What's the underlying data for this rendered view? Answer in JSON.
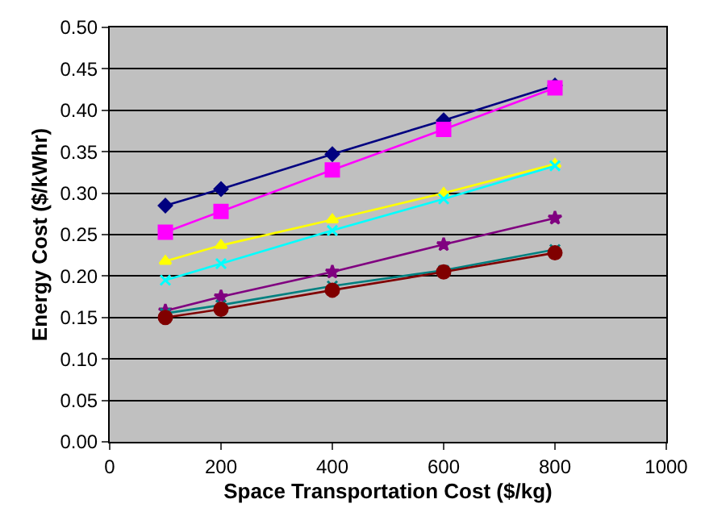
{
  "chart_data": {
    "type": "line",
    "xlabel": "Space Transportation Cost ($/kg)",
    "ylabel": "Energy Cost ($/kWhr)",
    "x": [
      100,
      200,
      400,
      600,
      800
    ],
    "series": [
      {
        "color": "#000080",
        "marker": "diamond",
        "values": [
          0.285,
          0.305,
          0.347,
          0.388,
          0.43
        ]
      },
      {
        "color": "#ff00ff",
        "marker": "square",
        "values": [
          0.253,
          0.278,
          0.328,
          0.377,
          0.427
        ]
      },
      {
        "color": "#ffff00",
        "marker": "triangle",
        "values": [
          0.218,
          0.237,
          0.268,
          0.3,
          0.335
        ]
      },
      {
        "color": "#00ffff",
        "marker": "cross",
        "values": [
          0.195,
          0.215,
          0.255,
          0.293,
          0.333
        ]
      },
      {
        "color": "#800080",
        "marker": "star",
        "values": [
          0.158,
          0.175,
          0.205,
          0.238,
          0.27
        ]
      },
      {
        "color": "#008080",
        "marker": "cross",
        "values": [
          0.155,
          0.165,
          0.188,
          0.207,
          0.232
        ]
      },
      {
        "color": "#800000",
        "marker": "circle",
        "values": [
          0.15,
          0.16,
          0.183,
          0.205,
          0.228
        ]
      }
    ],
    "xlim": [
      0,
      1000
    ],
    "xticks": [
      0,
      200,
      400,
      600,
      800,
      1000
    ],
    "ylim": [
      0,
      0.5
    ],
    "yticks": [
      {
        "value": 0,
        "label": "0.00"
      },
      {
        "value": 0.05,
        "label": "0.05"
      },
      {
        "value": 0.1,
        "label": "0.10"
      },
      {
        "value": 0.15,
        "label": "0.15"
      },
      {
        "value": 0.2,
        "label": "0.20"
      },
      {
        "value": 0.25,
        "label": "0.25"
      },
      {
        "value": 0.3,
        "label": "0.30"
      },
      {
        "value": 0.35,
        "label": "0.35"
      },
      {
        "value": 0.4,
        "label": "0.40"
      },
      {
        "value": 0.45,
        "label": "0.45"
      },
      {
        "value": 0.5,
        "label": "0.50"
      }
    ],
    "grid": "y",
    "line_style": "solid"
  }
}
